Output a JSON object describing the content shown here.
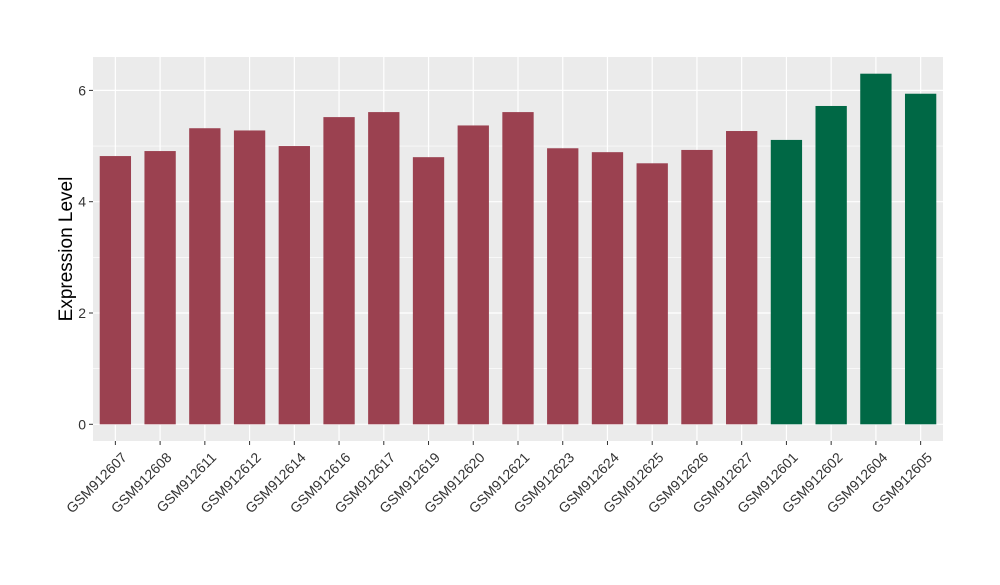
{
  "chart_data": {
    "type": "bar",
    "categories": [
      "GSM912607",
      "GSM912608",
      "GSM912611",
      "GSM912612",
      "GSM912614",
      "GSM912616",
      "GSM912617",
      "GSM912619",
      "GSM912620",
      "GSM912621",
      "GSM912623",
      "GSM912624",
      "GSM912625",
      "GSM912626",
      "GSM912627",
      "GSM912601",
      "GSM912602",
      "GSM912604",
      "GSM912605"
    ],
    "values": [
      4.82,
      4.91,
      5.32,
      5.28,
      5.0,
      5.52,
      5.61,
      4.8,
      5.37,
      5.61,
      4.96,
      4.89,
      4.69,
      4.93,
      5.27,
      5.11,
      5.72,
      6.3,
      5.94
    ],
    "groups": [
      0,
      0,
      0,
      0,
      0,
      0,
      0,
      0,
      0,
      0,
      0,
      0,
      0,
      0,
      0,
      1,
      1,
      1,
      1
    ],
    "group_colors": [
      "#9b4150",
      "#006845"
    ],
    "title": "",
    "xlabel": "",
    "ylabel": "Expression Level",
    "ylim": [
      -0.3,
      6.6
    ],
    "yticks": [
      0,
      2,
      4,
      6
    ],
    "grid": true,
    "panel_background": "#ebebeb",
    "grid_color": "#ffffff"
  }
}
